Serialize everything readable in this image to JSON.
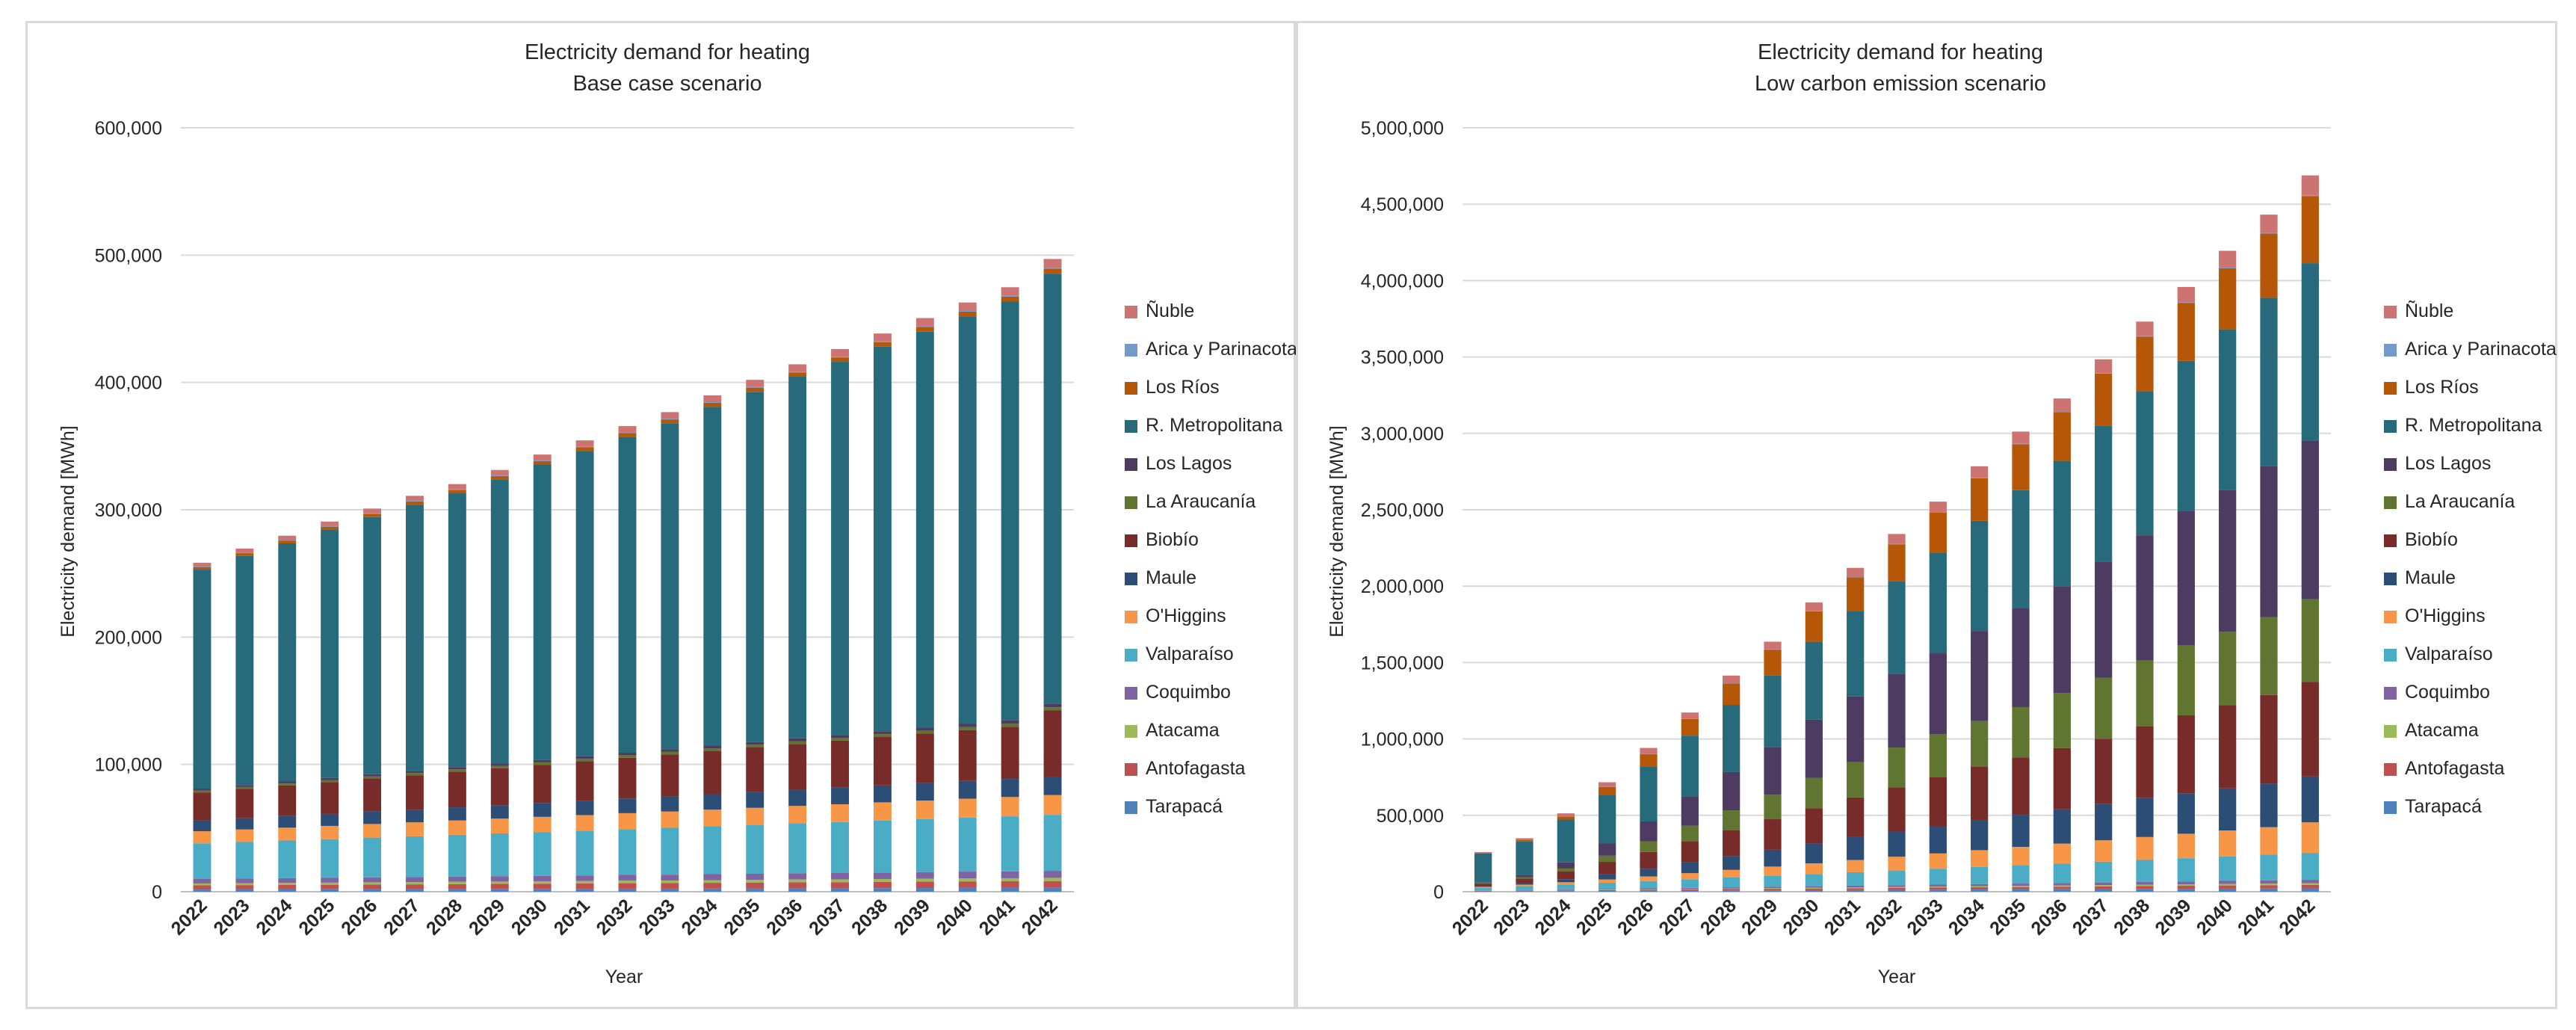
{
  "series_names": [
    "Tarapacá",
    "Antofagasta",
    "Atacama",
    "Coquimbo",
    "Valparaíso",
    "O'Higgins",
    "Maule",
    "Biobío",
    "La Araucanía",
    "Los Lagos",
    "R. Metropolitana",
    "Los Ríos",
    "Arica y Parinacota",
    "Ñuble"
  ],
  "colors": {
    "Tarapacá": "#4f81bd",
    "Antofagasta": "#c0504d",
    "Atacama": "#9bbb59",
    "Coquimbo": "#8064a2",
    "Valparaíso": "#4bacc6",
    "O'Higgins": "#f79646",
    "Maule": "#2c4d75",
    "Biobío": "#772c2a",
    "La Araucanía": "#5f7530",
    "Los Lagos": "#4d3b62",
    "R. Metropolitana": "#276a7c",
    "Los Ríos": "#b65708",
    "Arica y Parinacota": "#729aca",
    "Ñuble": "#cd7371"
  },
  "chart_data": [
    {
      "type": "bar",
      "stacked": true,
      "title": "Electricity demand for heating",
      "subtitle": "Base case scenario",
      "xlabel": "Year",
      "ylabel": "Electricity demand [MWh]",
      "ylim": [
        0,
        600000
      ],
      "yticks": [
        0,
        100000,
        200000,
        300000,
        400000,
        500000,
        600000
      ],
      "ytick_labels": [
        "0",
        "100,000",
        "200,000",
        "300,000",
        "400,000",
        "500,000",
        "600,000"
      ],
      "legend_position": "right",
      "categories": [
        "2022",
        "2023",
        "2024",
        "2025",
        "2026",
        "2027",
        "2028",
        "2029",
        "2030",
        "2031",
        "2032",
        "2033",
        "2034",
        "2035",
        "2036",
        "2037",
        "2038",
        "2039",
        "2040",
        "2041",
        "2042"
      ],
      "series": [
        {
          "name": "Tarapacá",
          "values": [
            1700,
            1800,
            1800,
            1900,
            2000,
            2000,
            2100,
            2200,
            2200,
            2300,
            2400,
            2400,
            2500,
            2600,
            2700,
            2700,
            2800,
            2900,
            3000,
            3000,
            3100
          ]
        },
        {
          "name": "Antofagasta",
          "values": [
            3300,
            3400,
            3500,
            3600,
            3700,
            3800,
            3900,
            4000,
            4100,
            4200,
            4300,
            4400,
            4500,
            4600,
            4700,
            4800,
            4900,
            5000,
            5100,
            5200,
            5300
          ]
        },
        {
          "name": "Atacama",
          "values": [
            1500,
            1500,
            1600,
            1600,
            1700,
            1700,
            1800,
            1800,
            1900,
            1900,
            2000,
            2000,
            2100,
            2100,
            2200,
            2200,
            2300,
            2300,
            2400,
            2400,
            2500
          ]
        },
        {
          "name": "Coquimbo",
          "values": [
            3500,
            3600,
            3700,
            3800,
            3900,
            4000,
            4100,
            4200,
            4300,
            4400,
            4500,
            4600,
            4700,
            4800,
            4900,
            5000,
            5100,
            5200,
            5300,
            5400,
            5500
          ]
        },
        {
          "name": "Valparaíso",
          "values": [
            28000,
            28800,
            29600,
            30400,
            31200,
            32000,
            32800,
            33600,
            34400,
            35200,
            36000,
            36800,
            37600,
            38400,
            39200,
            40000,
            40800,
            41600,
            42400,
            43200,
            44000
          ]
        },
        {
          "name": "O'Higgins",
          "values": [
            9500,
            9800,
            10100,
            10400,
            10700,
            11000,
            11300,
            11600,
            11900,
            12200,
            12500,
            12800,
            13100,
            13400,
            13700,
            14000,
            14300,
            14600,
            14900,
            15200,
            15500
          ]
        },
        {
          "name": "Maule",
          "values": [
            8500,
            8800,
            9100,
            9400,
            9700,
            10000,
            10300,
            10600,
            10900,
            11200,
            11500,
            11800,
            12100,
            12400,
            12700,
            13000,
            13300,
            13600,
            13900,
            14200,
            14500
          ]
        },
        {
          "name": "Biobío",
          "values": [
            22000,
            23000,
            24000,
            25000,
            26000,
            27000,
            28000,
            29000,
            30000,
            31000,
            32000,
            33000,
            34000,
            35000,
            36000,
            37000,
            38000,
            39000,
            40000,
            41000,
            52000
          ]
        },
        {
          "name": "La Araucanía",
          "values": [
            1500,
            1550,
            1600,
            1650,
            1700,
            1750,
            1800,
            1850,
            1900,
            1950,
            2000,
            2050,
            2100,
            2150,
            2200,
            2250,
            2300,
            2350,
            2400,
            2450,
            2500
          ]
        },
        {
          "name": "Los Lagos",
          "values": [
            1500,
            1550,
            1600,
            1650,
            1700,
            1750,
            1800,
            1850,
            1900,
            1950,
            2000,
            2050,
            2100,
            2150,
            2200,
            2250,
            2300,
            2350,
            2400,
            2450,
            2500
          ]
        },
        {
          "name": "R. Metropolitana",
          "values": [
            172000,
            180000,
            187000,
            195000,
            202000,
            209000,
            215000,
            223000,
            232000,
            240000,
            248000,
            256000,
            266000,
            275000,
            284000,
            293000,
            302000,
            311000,
            320000,
            329000,
            338000
          ]
        },
        {
          "name": "Los Ríos",
          "values": [
            2000,
            2100,
            2200,
            2300,
            2400,
            2500,
            2600,
            2700,
            2800,
            2900,
            3000,
            3100,
            3200,
            3300,
            3400,
            3500,
            3600,
            3700,
            3800,
            3900,
            4000
          ]
        },
        {
          "name": "Arica y Parinacota",
          "values": [
            400,
            410,
            420,
            430,
            440,
            450,
            460,
            470,
            480,
            490,
            500,
            510,
            520,
            530,
            540,
            550,
            560,
            570,
            580,
            590,
            600
          ]
        },
        {
          "name": "Ñuble",
          "values": [
            3000,
            3200,
            3400,
            3600,
            3800,
            4000,
            4200,
            4400,
            4600,
            4800,
            5000,
            5200,
            5400,
            5600,
            5800,
            6000,
            6200,
            6400,
            6600,
            6800,
            7000
          ]
        }
      ]
    },
    {
      "type": "bar",
      "stacked": true,
      "title": "Electricity demand for heating",
      "subtitle": "Low carbon emission scenario",
      "xlabel": "Year",
      "ylabel": "Electricity demand [MWh]",
      "ylim": [
        0,
        5000000
      ],
      "yticks": [
        0,
        500000,
        1000000,
        1500000,
        2000000,
        2500000,
        3000000,
        3500000,
        4000000,
        4500000,
        5000000
      ],
      "ytick_labels": [
        "0",
        "500,000",
        "1,000,000",
        "1,500,000",
        "2,000,000",
        "2,500,000",
        "3,000,000",
        "3,500,000",
        "4,000,000",
        "4,500,000",
        "5,000,000"
      ],
      "legend_position": "right",
      "categories": [
        "2022",
        "2023",
        "2024",
        "2025",
        "2026",
        "2027",
        "2028",
        "2029",
        "2030",
        "2031",
        "2032",
        "2033",
        "2034",
        "2035",
        "2036",
        "2037",
        "2038",
        "2039",
        "2040",
        "2041",
        "2042"
      ],
      "series": [
        {
          "name": "Tarapacá",
          "values": [
            2000,
            3000,
            4000,
            5000,
            6000,
            7000,
            8000,
            9000,
            10000,
            11000,
            12000,
            13000,
            14000,
            15000,
            16000,
            17000,
            18000,
            19000,
            20000,
            21000,
            22000
          ]
        },
        {
          "name": "Antofagasta",
          "values": [
            3000,
            4000,
            5000,
            6000,
            7000,
            8000,
            9000,
            10000,
            11000,
            12000,
            13000,
            14000,
            15000,
            16000,
            17000,
            18000,
            19000,
            20000,
            21000,
            22000,
            23000
          ]
        },
        {
          "name": "Atacama",
          "values": [
            1000,
            1500,
            2000,
            2500,
            3000,
            3500,
            4000,
            4500,
            5000,
            5500,
            6000,
            6500,
            7000,
            7500,
            8000,
            8500,
            9000,
            9500,
            10000,
            10500,
            11000
          ]
        },
        {
          "name": "Coquimbo",
          "values": [
            2000,
            3000,
            4000,
            5000,
            6000,
            7000,
            8000,
            9000,
            10000,
            11000,
            12000,
            13000,
            14000,
            15000,
            16000,
            17000,
            18000,
            19000,
            20000,
            21000,
            22000
          ]
        },
        {
          "name": "Valparaíso",
          "values": [
            18000,
            25000,
            32000,
            40000,
            48000,
            56000,
            64000,
            72000,
            80000,
            88000,
            96000,
            104000,
            112000,
            120000,
            128000,
            136000,
            144000,
            152000,
            160000,
            168000,
            176000
          ]
        },
        {
          "name": "O'Higgins",
          "values": [
            6000,
            10000,
            15000,
            22000,
            30000,
            40000,
            50000,
            60000,
            70000,
            80000,
            90000,
            100000,
            110000,
            120000,
            130000,
            140000,
            150000,
            160000,
            170000,
            180000,
            200000
          ]
        },
        {
          "name": "Maule",
          "values": [
            5000,
            10000,
            20000,
            35000,
            50000,
            70000,
            90000,
            110000,
            130000,
            150000,
            165000,
            180000,
            195000,
            210000,
            225000,
            240000,
            255000,
            265000,
            275000,
            285000,
            300000
          ]
        },
        {
          "name": "Biobío",
          "values": [
            15000,
            30000,
            50000,
            80000,
            110000,
            140000,
            170000,
            200000,
            230000,
            260000,
            290000,
            320000,
            350000,
            375000,
            400000,
            425000,
            470000,
            510000,
            545000,
            580000,
            620000
          ]
        },
        {
          "name": "La Araucanía",
          "values": [
            3000,
            8000,
            20000,
            40000,
            70000,
            100000,
            130000,
            160000,
            200000,
            230000,
            260000,
            280000,
            300000,
            330000,
            360000,
            400000,
            430000,
            460000,
            480000,
            510000,
            540000
          ]
        },
        {
          "name": "Los Lagos",
          "values": [
            5000,
            15000,
            40000,
            80000,
            130000,
            190000,
            250000,
            310000,
            380000,
            430000,
            480000,
            530000,
            590000,
            650000,
            700000,
            760000,
            820000,
            880000,
            930000,
            990000,
            1040000
          ]
        },
        {
          "name": "R. Metropolitana",
          "values": [
            190000,
            220000,
            280000,
            320000,
            360000,
            400000,
            440000,
            470000,
            510000,
            560000,
            610000,
            660000,
            720000,
            770000,
            820000,
            890000,
            940000,
            980000,
            1050000,
            1100000,
            1160000
          ]
        },
        {
          "name": "Los Ríos",
          "values": [
            4000,
            10000,
            20000,
            50000,
            80000,
            110000,
            140000,
            170000,
            200000,
            220000,
            240000,
            260000,
            280000,
            300000,
            320000,
            340000,
            360000,
            380000,
            400000,
            420000,
            440000
          ]
        },
        {
          "name": "Arica y Parinacota",
          "values": [
            500,
            700,
            900,
            1100,
            1300,
            1500,
            1700,
            1900,
            2100,
            2300,
            2500,
            2700,
            2900,
            3100,
            3300,
            3500,
            3700,
            3900,
            4100,
            4300,
            4500
          ]
        },
        {
          "name": "Ñuble",
          "values": [
            5000,
            10000,
            20000,
            30000,
            40000,
            40000,
            50000,
            50000,
            55000,
            60000,
            65000,
            70000,
            75000,
            80000,
            85000,
            90000,
            95000,
            100000,
            110000,
            120000,
            130000
          ]
        }
      ]
    }
  ]
}
